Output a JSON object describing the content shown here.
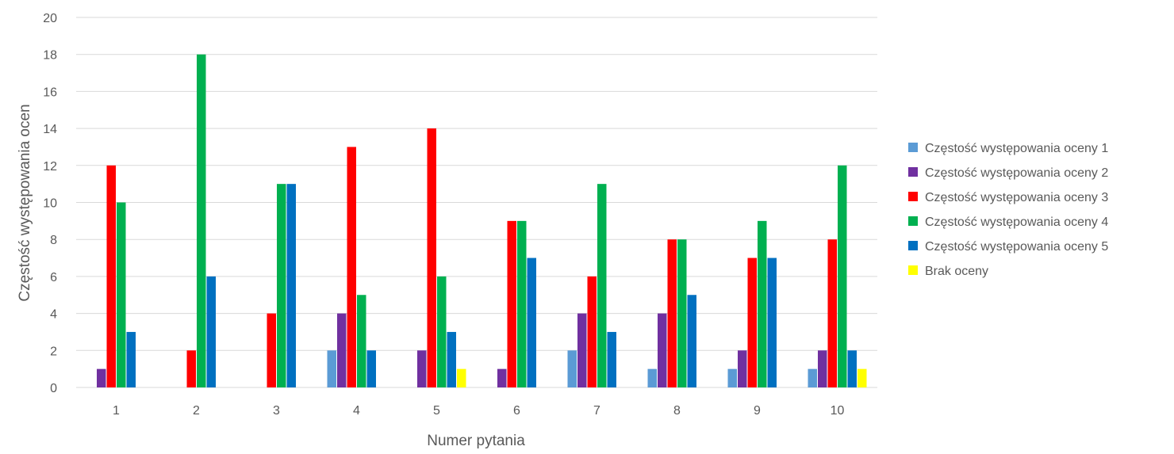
{
  "chart_data": {
    "type": "bar",
    "title": "",
    "xlabel": "Numer pytania",
    "ylabel": "Częstość występowania ocen",
    "categories": [
      "1",
      "2",
      "3",
      "4",
      "5",
      "6",
      "7",
      "8",
      "9",
      "10"
    ],
    "ylim": [
      0,
      20
    ],
    "yticks": [
      "0",
      "2",
      "4",
      "6",
      "8",
      "10",
      "12",
      "14",
      "16",
      "18",
      "20"
    ],
    "grid": true,
    "legend_position": "right",
    "series": [
      {
        "name": "Częstość występowania oceny 1",
        "color": "#5B9BD5",
        "values": [
          0,
          0,
          0,
          2,
          0,
          0,
          2,
          1,
          1,
          1
        ]
      },
      {
        "name": "Częstość występowania oceny 2",
        "color": "#7030A0",
        "values": [
          1,
          0,
          0,
          4,
          2,
          1,
          4,
          4,
          2,
          2
        ]
      },
      {
        "name": "Częstość występowania oceny 3",
        "color": "#FF0000",
        "values": [
          12,
          2,
          4,
          13,
          14,
          9,
          6,
          8,
          7,
          8
        ]
      },
      {
        "name": "Częstość występowania oceny 4",
        "color": "#00B050",
        "values": [
          10,
          18,
          11,
          5,
          6,
          9,
          11,
          8,
          9,
          12
        ]
      },
      {
        "name": "Częstość występowania oceny 5",
        "color": "#0070C0",
        "values": [
          3,
          6,
          11,
          2,
          3,
          7,
          3,
          5,
          7,
          2
        ]
      },
      {
        "name": "Brak oceny",
        "color": "#FFFF00",
        "values": [
          0,
          0,
          0,
          0,
          1,
          0,
          0,
          0,
          0,
          1
        ]
      }
    ]
  }
}
